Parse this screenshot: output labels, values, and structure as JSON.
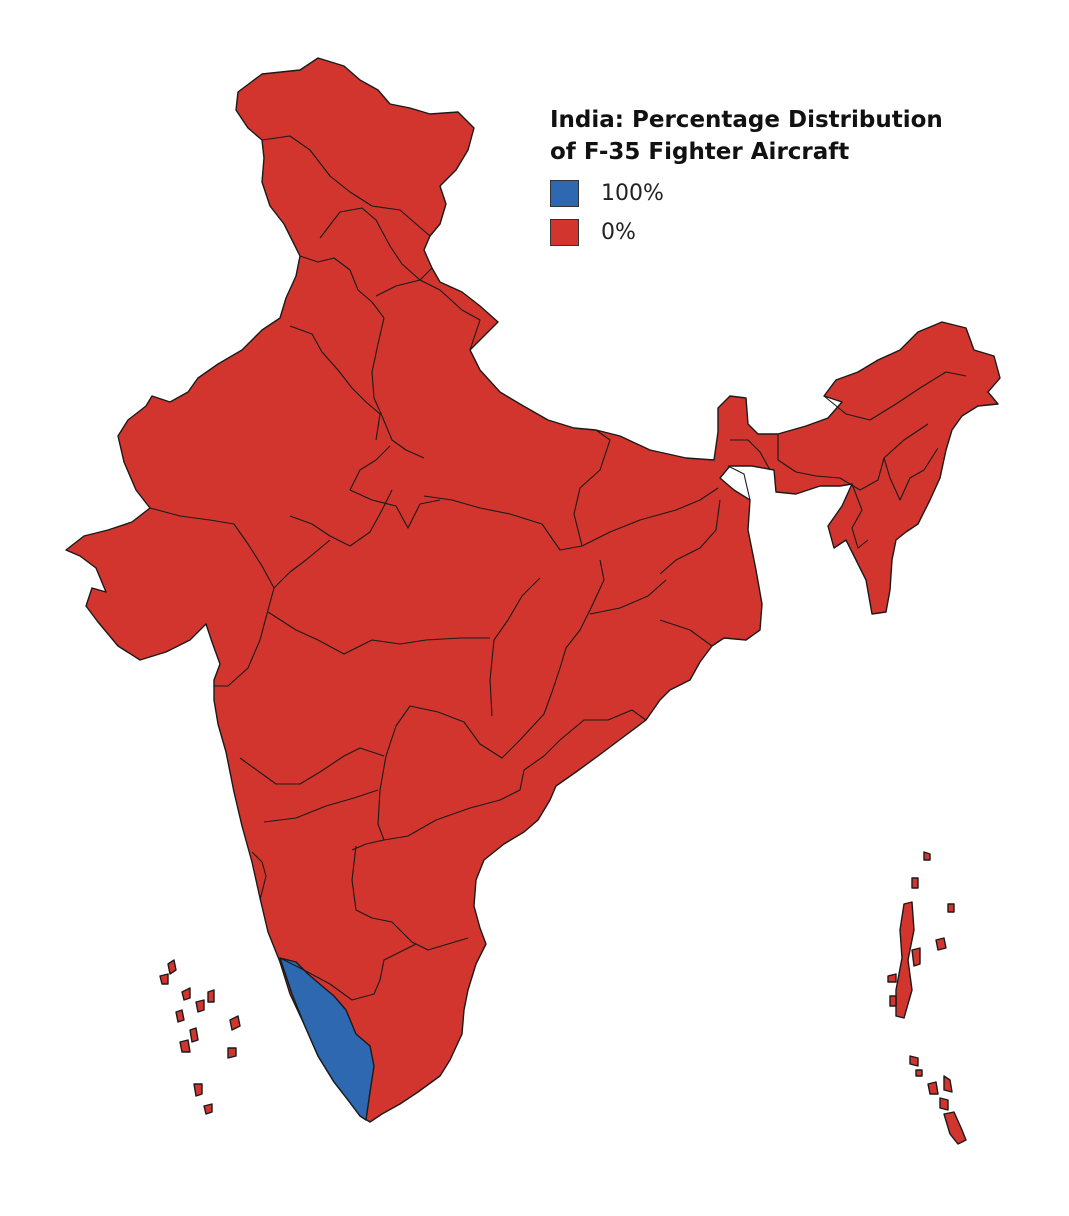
{
  "title_line1": "India: Percentage Distribution",
  "title_line2": "of F-35 Fighter Aircraft",
  "legend": [
    {
      "label": "100%",
      "color": "#2d68b0"
    },
    {
      "label": "0%",
      "color": "#d2352d"
    }
  ],
  "colors": {
    "default_fill": "#d2352d",
    "highlight_fill": "#2d68b0",
    "border": "#1a1a1a"
  },
  "highlighted_region": "Kerala"
}
